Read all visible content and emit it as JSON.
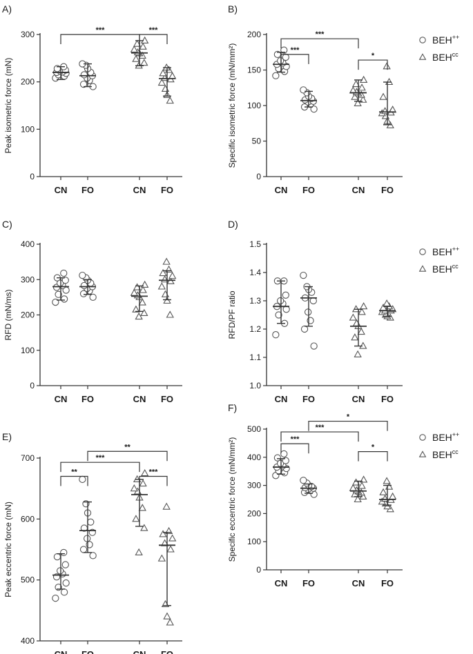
{
  "legend": [
    {
      "name": "BEH",
      "sup": "++",
      "marker": "circle"
    },
    {
      "name": "BEH",
      "sup": "cc",
      "marker": "triangle"
    }
  ],
  "colors": {
    "ink": "#333333",
    "marker_stroke": "#555555"
  },
  "chart_data": [
    {
      "type": "scatter",
      "panel": "A)",
      "ylabel": "Peak isometric force (mN)",
      "ylim": [
        0,
        300
      ],
      "yticks": [
        0,
        100,
        200,
        300
      ],
      "categories": [
        "CN",
        "FO",
        "CN",
        "FO"
      ],
      "groups": [
        {
          "category": "CN",
          "marker": "circle",
          "median": 220,
          "range": [
            205,
            232
          ],
          "points": [
            208,
            212,
            215,
            218,
            220,
            221,
            223,
            225,
            228,
            232
          ]
        },
        {
          "category": "FO",
          "marker": "circle",
          "median": 213,
          "range": [
            190,
            238
          ],
          "points": [
            190,
            195,
            203,
            208,
            213,
            215,
            220,
            228,
            235,
            238
          ]
        },
        {
          "category": "CN",
          "marker": "triangle",
          "median": 261,
          "range": [
            234,
            287
          ],
          "points": [
            234,
            240,
            248,
            255,
            260,
            262,
            268,
            274,
            280,
            287
          ]
        },
        {
          "category": "FO",
          "marker": "triangle",
          "median": 207,
          "range": [
            170,
            230
          ],
          "points": [
            160,
            172,
            185,
            198,
            205,
            208,
            212,
            218,
            225,
            230
          ]
        }
      ],
      "brackets": [
        {
          "from": 0,
          "to": 2,
          "label": "***",
          "y": 300
        },
        {
          "from": 2,
          "to": 3,
          "label": "***",
          "y": 300
        }
      ]
    },
    {
      "type": "scatter",
      "panel": "B)",
      "ylabel": "Specific isometric force (mN/mm²)",
      "ylim": [
        0,
        200
      ],
      "yticks": [
        0,
        50,
        100,
        150,
        200
      ],
      "categories": [
        "CN",
        "FO",
        "CN",
        "FO"
      ],
      "groups": [
        {
          "category": "CN",
          "marker": "circle",
          "median": 158,
          "range": [
            147,
            175
          ],
          "points": [
            142,
            148,
            152,
            155,
            158,
            160,
            163,
            168,
            172,
            178
          ]
        },
        {
          "category": "FO",
          "marker": "circle",
          "median": 107,
          "range": [
            98,
            120
          ],
          "points": [
            95,
            98,
            102,
            105,
            106,
            108,
            110,
            113,
            118,
            122
          ]
        },
        {
          "category": "CN",
          "marker": "triangle",
          "median": 118,
          "range": [
            106,
            136
          ],
          "points": [
            103,
            108,
            112,
            115,
            117,
            119,
            121,
            125,
            130,
            136
          ]
        },
        {
          "category": "FO",
          "marker": "triangle",
          "median": 91,
          "range": [
            73,
            133
          ],
          "points": [
            72,
            78,
            85,
            89,
            90,
            92,
            94,
            112,
            133,
            155
          ]
        }
      ],
      "brackets": [
        {
          "from": 0,
          "to": 2,
          "label": "***",
          "y": 194
        },
        {
          "from": 0,
          "to": 1,
          "label": "***",
          "y": 172
        },
        {
          "from": 2,
          "to": 3,
          "label": "*",
          "y": 164
        }
      ]
    },
    {
      "type": "scatter",
      "panel": "C)",
      "ylabel": "RFD (mN/ms)",
      "ylim": [
        0,
        400
      ],
      "yticks": [
        0,
        100,
        200,
        300,
        400
      ],
      "categories": [
        "CN",
        "FO",
        "CN",
        "FO"
      ],
      "groups": [
        {
          "category": "CN",
          "marker": "circle",
          "median": 280,
          "range": [
            242,
            305
          ],
          "points": [
            236,
            245,
            258,
            270,
            278,
            283,
            290,
            298,
            305,
            318
          ]
        },
        {
          "category": "FO",
          "marker": "circle",
          "median": 280,
          "range": [
            258,
            300
          ],
          "points": [
            250,
            260,
            268,
            275,
            280,
            283,
            290,
            298,
            305,
            312
          ]
        },
        {
          "category": "CN",
          "marker": "triangle",
          "median": 253,
          "range": [
            210,
            282
          ],
          "points": [
            195,
            205,
            215,
            235,
            250,
            255,
            262,
            270,
            278,
            285
          ]
        },
        {
          "category": "FO",
          "marker": "triangle",
          "median": 298,
          "range": [
            243,
            325
          ],
          "points": [
            200,
            240,
            258,
            280,
            295,
            300,
            310,
            318,
            328,
            350
          ]
        }
      ],
      "brackets": []
    },
    {
      "type": "scatter",
      "panel": "D)",
      "ylabel": "RFD/PF ratio",
      "ylim": [
        1.0,
        1.5
      ],
      "yticks": [
        1.0,
        1.1,
        1.2,
        1.3,
        1.4,
        1.5
      ],
      "categories": [
        "CN",
        "FO",
        "CN",
        "FO"
      ],
      "groups": [
        {
          "category": "CN",
          "marker": "circle",
          "median": 1.28,
          "range": [
            1.22,
            1.37
          ],
          "points": [
            1.18,
            1.22,
            1.25,
            1.27,
            1.28,
            1.29,
            1.3,
            1.32,
            1.37,
            1.37
          ]
        },
        {
          "category": "FO",
          "marker": "circle",
          "median": 1.31,
          "range": [
            1.21,
            1.35
          ],
          "points": [
            1.14,
            1.2,
            1.23,
            1.26,
            1.3,
            1.31,
            1.33,
            1.34,
            1.35,
            1.39
          ]
        },
        {
          "category": "CN",
          "marker": "triangle",
          "median": 1.21,
          "range": [
            1.14,
            1.27
          ],
          "points": [
            1.11,
            1.14,
            1.17,
            1.19,
            1.21,
            1.22,
            1.24,
            1.26,
            1.27,
            1.28
          ]
        },
        {
          "category": "FO",
          "marker": "triangle",
          "median": 1.265,
          "range": [
            1.245,
            1.28
          ],
          "points": [
            1.24,
            1.245,
            1.25,
            1.26,
            1.265,
            1.265,
            1.27,
            1.275,
            1.28,
            1.29
          ]
        }
      ],
      "brackets": []
    },
    {
      "type": "scatter",
      "panel": "E)",
      "ylabel": "Peak eccentric force (mN)",
      "ylim": [
        400,
        700
      ],
      "yticks": [
        400,
        500,
        600,
        700
      ],
      "categories": [
        "CN",
        "FO",
        "CN",
        "FO"
      ],
      "groups": [
        {
          "category": "CN",
          "marker": "circle",
          "median": 508,
          "range": [
            485,
            543
          ],
          "points": [
            470,
            480,
            488,
            495,
            505,
            510,
            515,
            525,
            538,
            545
          ]
        },
        {
          "category": "FO",
          "marker": "circle",
          "median": 581,
          "range": [
            545,
            628
          ],
          "points": [
            540,
            550,
            558,
            568,
            578,
            585,
            595,
            610,
            625,
            665
          ]
        },
        {
          "category": "CN",
          "marker": "triangle",
          "median": 640,
          "range": [
            588,
            665
          ],
          "points": [
            545,
            585,
            600,
            618,
            635,
            645,
            650,
            658,
            665,
            675
          ]
        },
        {
          "category": "FO",
          "marker": "triangle",
          "median": 557,
          "range": [
            458,
            578
          ],
          "points": [
            430,
            440,
            460,
            535,
            550,
            560,
            568,
            575,
            580,
            620
          ]
        }
      ],
      "brackets": [
        {
          "from": 1,
          "to": 3,
          "label": "**",
          "y": 711
        },
        {
          "from": 0,
          "to": 2,
          "label": "***",
          "y": 693
        },
        {
          "from": 0,
          "to": 1,
          "label": "**",
          "y": 670
        },
        {
          "from": 2,
          "to": 3,
          "label": "***",
          "y": 670
        }
      ]
    },
    {
      "type": "scatter",
      "panel": "F)",
      "ylabel": "Specific eccentric force (mN/mm²)",
      "ylim": [
        0,
        500
      ],
      "yticks": [
        0,
        100,
        200,
        300,
        400,
        500
      ],
      "categories": [
        "CN",
        "FO",
        "CN",
        "FO"
      ],
      "groups": [
        {
          "category": "CN",
          "marker": "circle",
          "median": 365,
          "range": [
            340,
            395
          ],
          "points": [
            335,
            345,
            352,
            360,
            365,
            370,
            378,
            388,
            398,
            412
          ]
        },
        {
          "category": "FO",
          "marker": "circle",
          "median": 290,
          "range": [
            272,
            305
          ],
          "points": [
            268,
            275,
            282,
            286,
            290,
            292,
            296,
            300,
            308,
            318
          ]
        },
        {
          "category": "CN",
          "marker": "triangle",
          "median": 280,
          "range": [
            260,
            315
          ],
          "points": [
            250,
            260,
            268,
            274,
            278,
            282,
            290,
            298,
            310,
            320
          ]
        },
        {
          "category": "FO",
          "marker": "triangle",
          "median": 250,
          "range": [
            230,
            300
          ],
          "points": [
            215,
            225,
            235,
            242,
            248,
            252,
            260,
            275,
            295,
            315
          ]
        }
      ],
      "brackets": [
        {
          "from": 1,
          "to": 3,
          "label": "*",
          "y": 528
        },
        {
          "from": 0,
          "to": 2,
          "label": "***",
          "y": 490
        },
        {
          "from": 0,
          "to": 1,
          "label": "***",
          "y": 448
        },
        {
          "from": 2,
          "to": 3,
          "label": "*",
          "y": 420
        }
      ]
    }
  ]
}
